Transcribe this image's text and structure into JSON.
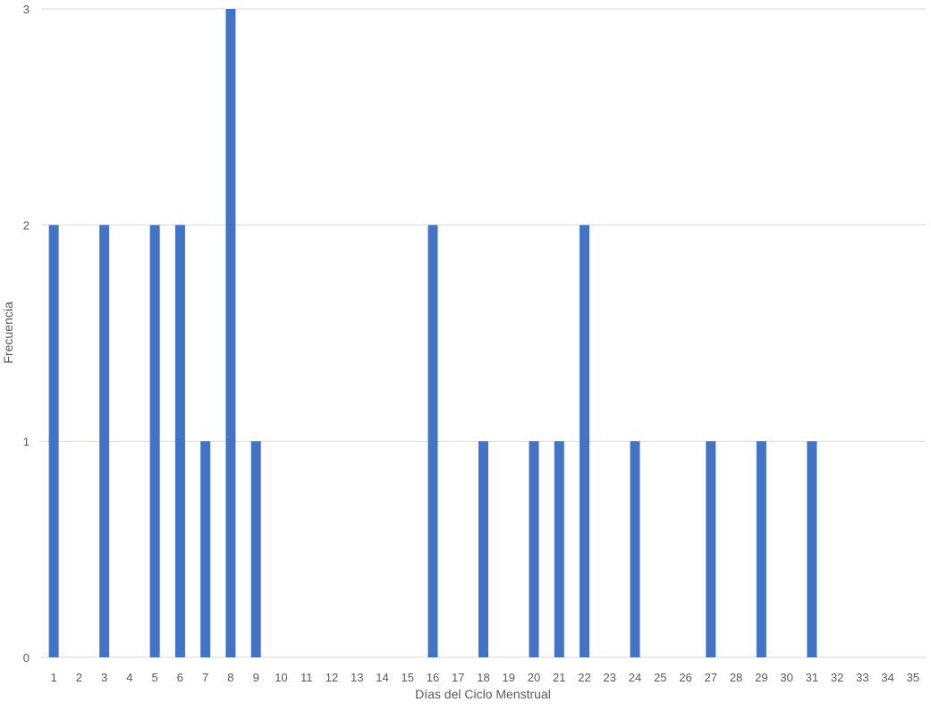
{
  "chart_data": {
    "type": "bar",
    "title": "",
    "xlabel": "Días del Ciclo Menstrual",
    "ylabel": "Frecuencia",
    "categories": [
      "1",
      "2",
      "3",
      "4",
      "5",
      "6",
      "7",
      "8",
      "9",
      "10",
      "11",
      "12",
      "13",
      "14",
      "15",
      "16",
      "17",
      "18",
      "19",
      "20",
      "21",
      "22",
      "23",
      "24",
      "25",
      "26",
      "27",
      "28",
      "29",
      "30",
      "31",
      "32",
      "33",
      "34",
      "35"
    ],
    "values": [
      2,
      0,
      2,
      0,
      2,
      2,
      1,
      3,
      1,
      0,
      0,
      0,
      0,
      0,
      0,
      2,
      0,
      1,
      0,
      1,
      1,
      2,
      0,
      1,
      0,
      0,
      1,
      0,
      1,
      0,
      1,
      0,
      0,
      0,
      0
    ],
    "ylim": [
      0,
      3
    ],
    "yticks": [
      "0",
      "1",
      "2",
      "3"
    ],
    "grid": true,
    "legend": "none",
    "bar_color": "#4472C4",
    "grid_color": "#D9D9D9"
  }
}
